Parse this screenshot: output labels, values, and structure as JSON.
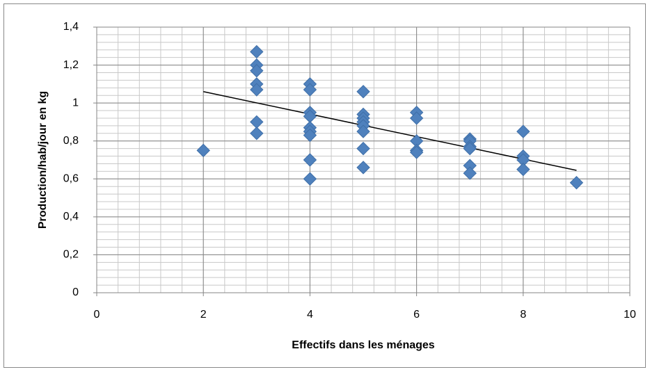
{
  "chart_data": {
    "type": "scatter",
    "xlabel": "Effectifs dans les ménages",
    "ylabel": "Production/hab/jour en kg",
    "series": [
      {
        "color": "#4f81bd",
        "x": [
          2,
          3,
          3,
          3,
          3,
          3,
          3,
          3,
          4,
          4,
          4,
          4,
          4,
          4,
          4,
          4,
          4,
          5,
          5,
          5,
          5,
          5,
          5,
          5,
          5,
          6,
          6,
          6,
          6,
          6,
          7,
          7,
          7,
          7,
          7,
          7,
          8,
          8,
          8,
          8,
          9
        ],
        "values": [
          0.75,
          1.27,
          1.2,
          1.17,
          1.1,
          1.07,
          0.9,
          0.84,
          1.1,
          1.07,
          0.95,
          0.93,
          0.87,
          0.85,
          0.83,
          0.7,
          0.6,
          1.06,
          0.94,
          0.92,
          0.9,
          0.88,
          0.85,
          0.76,
          0.66,
          0.95,
          0.92,
          0.8,
          0.75,
          0.74,
          0.81,
          0.8,
          0.77,
          0.76,
          0.67,
          0.63,
          0.85,
          0.72,
          0.7,
          0.65,
          0.58
        ]
      }
    ],
    "trendline": {
      "color": "#000000",
      "x": [
        2,
        9
      ],
      "values": [
        1.06,
        0.645
      ]
    },
    "xlim": [
      0,
      10
    ],
    "xticks": [
      0,
      2,
      4,
      6,
      8,
      10
    ],
    "ylim": [
      0,
      1.4
    ],
    "yticks": [
      0,
      {
        "value": 0.2,
        "label": "0,2"
      },
      {
        "value": 0.4,
        "label": "0,4"
      },
      {
        "value": 0.6,
        "label": "0,6"
      },
      {
        "value": 0.8,
        "label": "0,8"
      },
      1,
      {
        "value": 1.2,
        "label": "1,2"
      },
      {
        "value": 1.4,
        "label": "1,4"
      }
    ],
    "grid": true,
    "minor_grid": {
      "x": 0.4,
      "y": 0.04
    }
  }
}
